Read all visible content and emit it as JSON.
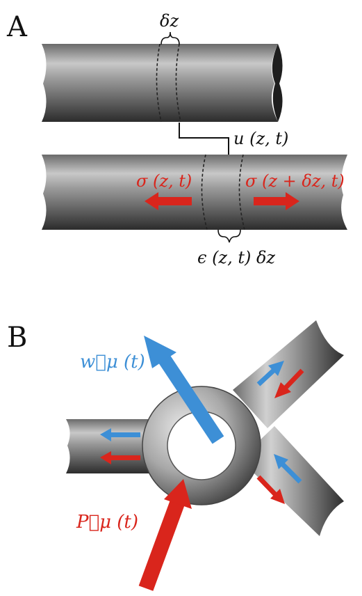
{
  "panel_a": {
    "letter": "A",
    "delta_z": "δz",
    "displacement": "u (z, t)",
    "stress_left": "σ (z, t)",
    "stress_right": "σ (z + δz, t)",
    "strain": "ϵ (z, t) δz"
  },
  "panel_b": {
    "letter": "B",
    "flow_label": "w⃗μ (t)",
    "pressure_label": "P⃗μ (t)"
  },
  "colors": {
    "stress_red": "#d9251c",
    "flow_blue": "#3d8fd6",
    "tube_dark": "#3a3a3a",
    "tube_light": "#d4d4d4"
  }
}
